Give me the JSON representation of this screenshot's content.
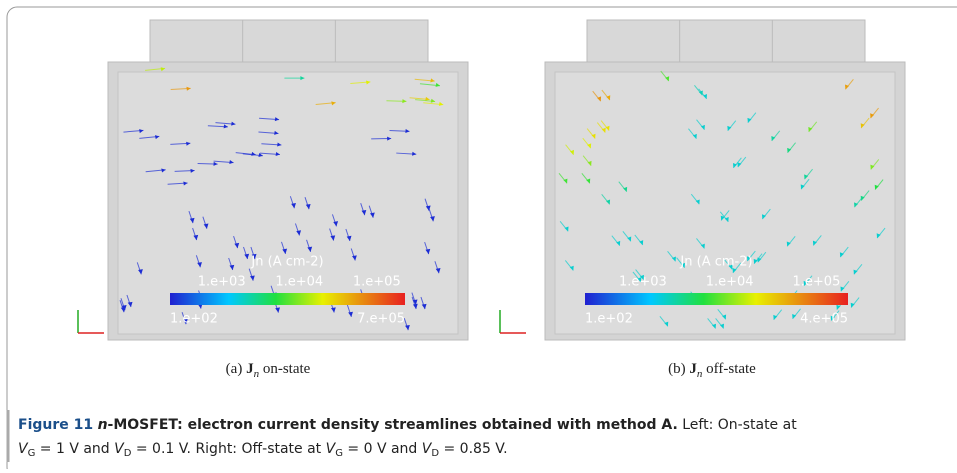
{
  "panels": [
    {
      "colorbar": {
        "title": "Jn (A cm-2)",
        "ticks": [
          "1.e+03",
          "1.e+04",
          "1.e+05"
        ],
        "min": "1.e+02",
        "max": "7.e+05"
      },
      "subcaption": {
        "label": "(a)",
        "symbol": "J",
        "subscript": "n",
        "text": "on-state"
      }
    },
    {
      "colorbar": {
        "title": "Jn (A cm-2)",
        "ticks": [
          "1.e+03",
          "1.e+04",
          "1.e+05"
        ],
        "min": "1.e+02",
        "max": "4.e+05"
      },
      "subcaption": {
        "label": "(b)",
        "symbol": "J",
        "subscript": "n",
        "text": "off-state"
      }
    }
  ],
  "caption": {
    "label": "Figure 11",
    "title_italic": "n",
    "title": "-MOSFET: electron current density streamlines obtained with method A.",
    "body": [
      "Left: On-state at ",
      "V",
      "G",
      " = 1 V and ",
      "V",
      "D",
      " = 0.1 V. Right: Off-state at ",
      "V",
      "G",
      " = 0 V and ",
      "V",
      "D",
      " = 0.85 V."
    ]
  }
}
